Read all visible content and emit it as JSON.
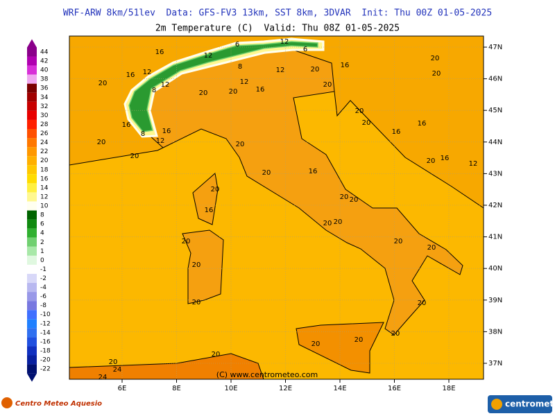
{
  "header": {
    "title": "WRF-ARW 8km/51lev  Data: GFS-FV3 13km, SST 8km, 3DVAR  Init: Thu 00Z 01-05-2025",
    "subtitle": "2m Temperature (C)  Valid: Thu 08Z 01-05-2025"
  },
  "colorbar": {
    "levels": [
      {
        "label": 44,
        "color": "#8a008a"
      },
      {
        "label": 42,
        "color": "#b000b0"
      },
      {
        "label": 40,
        "color": "#d830d8"
      },
      {
        "label": 38,
        "color": "#f0a8f0"
      },
      {
        "label": 36,
        "color": "#7a0000"
      },
      {
        "label": 34,
        "color": "#a00000"
      },
      {
        "label": 32,
        "color": "#c80000"
      },
      {
        "label": 30,
        "color": "#e80000"
      },
      {
        "label": 28,
        "color": "#ff2000"
      },
      {
        "label": 26,
        "color": "#ff5000"
      },
      {
        "label": 24,
        "color": "#ff7800"
      },
      {
        "label": 22,
        "color": "#ff9800"
      },
      {
        "label": 20,
        "color": "#ffb000"
      },
      {
        "label": 18,
        "color": "#ffc800"
      },
      {
        "label": 16,
        "color": "#ffdc00"
      },
      {
        "label": 14,
        "color": "#fff040"
      },
      {
        "label": 12,
        "color": "#fff890"
      },
      {
        "label": 10,
        "color": "#fffff0"
      },
      {
        "label": 8,
        "color": "#006400"
      },
      {
        "label": 6,
        "color": "#108a10"
      },
      {
        "label": 4,
        "color": "#30b030"
      },
      {
        "label": 2,
        "color": "#70d070"
      },
      {
        "label": 1,
        "color": "#a8e8a8"
      },
      {
        "label": 0,
        "color": "#e0f8e0"
      },
      {
        "label": -1,
        "color": "#ffffff"
      },
      {
        "label": -2,
        "color": "#d8d8f8"
      },
      {
        "label": -4,
        "color": "#b8b8f0"
      },
      {
        "label": -6,
        "color": "#9898e8"
      },
      {
        "label": -8,
        "color": "#7878e0"
      },
      {
        "label": -10,
        "color": "#4070ff"
      },
      {
        "label": -12,
        "color": "#2080ff"
      },
      {
        "label": -14,
        "color": "#3070f0"
      },
      {
        "label": -16,
        "color": "#2050e0"
      },
      {
        "label": -18,
        "color": "#1030c0"
      },
      {
        "label": -20,
        "color": "#0820a0"
      },
      {
        "label": -22,
        "color": "#001070"
      }
    ]
  },
  "map": {
    "lon_labels": [
      "6E",
      "8E",
      "10E",
      "12E",
      "14E",
      "16E",
      "18E"
    ],
    "lat_labels": [
      "47N",
      "46N",
      "45N",
      "44N",
      "43N",
      "42N",
      "41N",
      "40N",
      "39N",
      "38N",
      "37N"
    ],
    "contour_labels": [
      "16",
      "12",
      "6",
      "12",
      "6",
      "20",
      "20",
      "16",
      "12",
      "20",
      "8",
      "12",
      "8",
      "12",
      "12",
      "20",
      "16",
      "20",
      "20",
      "16",
      "20",
      "20",
      "20",
      "16",
      "8",
      "16",
      "12",
      "16",
      "16",
      "20",
      "20",
      "20",
      "20",
      "16",
      "12",
      "20",
      "16",
      "20",
      "16",
      "20",
      "20",
      "20",
      "20",
      "20",
      "20",
      "20",
      "20",
      "20",
      "20",
      "20",
      "20",
      "20",
      "20",
      "20",
      "24",
      "24"
    ],
    "credit": "(C) www.centrometeo.com"
  },
  "footer": {
    "left_logo": "Centro Meteo Aquesio",
    "right_logo": "centrometeo"
  }
}
